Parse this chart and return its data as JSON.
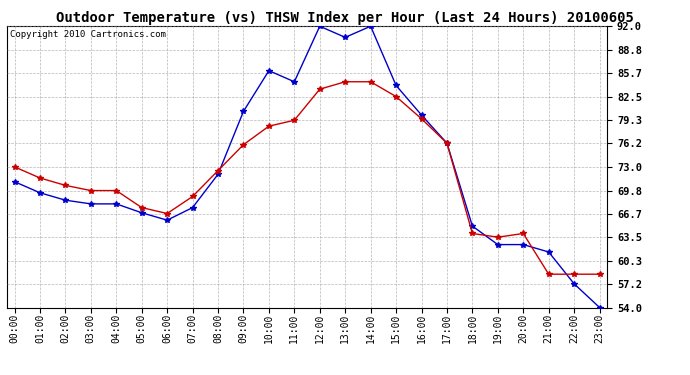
{
  "title": "Outdoor Temperature (vs) THSW Index per Hour (Last 24 Hours) 20100605",
  "copyright": "Copyright 2010 Cartronics.com",
  "hours": [
    "00:00",
    "01:00",
    "02:00",
    "03:00",
    "04:00",
    "05:00",
    "06:00",
    "07:00",
    "08:00",
    "09:00",
    "10:00",
    "11:00",
    "12:00",
    "13:00",
    "14:00",
    "15:00",
    "16:00",
    "17:00",
    "18:00",
    "19:00",
    "20:00",
    "21:00",
    "22:00",
    "23:00"
  ],
  "temp_red": [
    73.0,
    71.5,
    70.5,
    69.8,
    69.8,
    67.5,
    66.7,
    69.0,
    72.5,
    76.0,
    78.5,
    79.3,
    83.5,
    84.5,
    84.5,
    82.5,
    79.5,
    76.2,
    64.0,
    63.5,
    64.0,
    58.5,
    58.5,
    58.5
  ],
  "thsw_blue": [
    71.0,
    69.5,
    68.5,
    68.0,
    68.0,
    66.8,
    65.8,
    67.5,
    72.0,
    80.5,
    86.0,
    84.5,
    92.0,
    90.5,
    92.0,
    84.0,
    80.0,
    76.2,
    65.0,
    62.5,
    62.5,
    61.5,
    57.2,
    54.0
  ],
  "ylim": [
    54.0,
    92.0
  ],
  "yticks": [
    54.0,
    57.2,
    60.3,
    63.5,
    66.7,
    69.8,
    73.0,
    76.2,
    79.3,
    82.5,
    85.7,
    88.8,
    92.0
  ],
  "red_color": "#cc0000",
  "blue_color": "#0000cc",
  "background_color": "#ffffff",
  "grid_color": "#999999",
  "title_fontsize": 10,
  "copyright_fontsize": 6.5,
  "tick_fontsize": 7.5,
  "xlabel_fontsize": 7
}
